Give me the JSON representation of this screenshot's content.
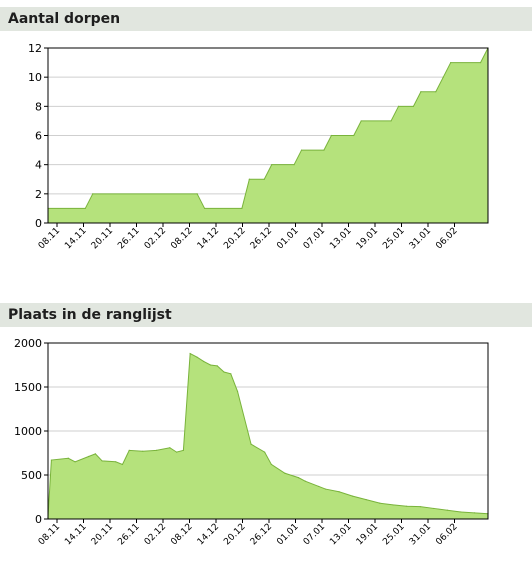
{
  "panels": [
    {
      "title": "Aantal dorpen"
    },
    {
      "title": "Plaats in de ranglijst"
    }
  ],
  "colors": {
    "fill": "#b5e27c",
    "stroke": "#79b33b",
    "grid": "#cfcfcf",
    "header": "#e1e6df"
  },
  "chart_data": [
    {
      "type": "area",
      "title": "Aantal dorpen",
      "x_tick_labels": [
        "08.11",
        "14.11",
        "20.11",
        "26.11",
        "02.12",
        "08.12",
        "14.12",
        "20.12",
        "26.12",
        "01.01",
        "07.01",
        "13.01",
        "19.01",
        "25.01",
        "31.01",
        "06.02"
      ],
      "ylim": [
        0,
        12
      ],
      "y_ticks": [
        0,
        2,
        4,
        6,
        8,
        10,
        12
      ],
      "grid": true,
      "points": [
        [
          0,
          1
        ],
        [
          5,
          1
        ],
        [
          6,
          2
        ],
        [
          20,
          2
        ],
        [
          21,
          1
        ],
        [
          26,
          1
        ],
        [
          27,
          3
        ],
        [
          29,
          3
        ],
        [
          30,
          4
        ],
        [
          33,
          4
        ],
        [
          34,
          5
        ],
        [
          37,
          5
        ],
        [
          38,
          6
        ],
        [
          41,
          6
        ],
        [
          42,
          7
        ],
        [
          46,
          7
        ],
        [
          47,
          8
        ],
        [
          49,
          8
        ],
        [
          50,
          9
        ],
        [
          52,
          9
        ],
        [
          53,
          10
        ],
        [
          54,
          11
        ],
        [
          58,
          11
        ],
        [
          59,
          12
        ]
      ]
    },
    {
      "type": "area",
      "title": "Plaats in de ranglijst",
      "x_tick_labels": [
        "08.11",
        "14.11",
        "20.11",
        "26.11",
        "02.12",
        "08.12",
        "14.12",
        "20.12",
        "26.12",
        "01.01",
        "07.01",
        "13.01",
        "19.01",
        "25.01",
        "31.01",
        "06.02"
      ],
      "ylim": [
        0,
        2000
      ],
      "y_ticks": [
        0,
        500,
        1000,
        1500,
        2000
      ],
      "grid": true,
      "points": [
        [
          0,
          20
        ],
        [
          0.5,
          670
        ],
        [
          3,
          690
        ],
        [
          4,
          650
        ],
        [
          6,
          710
        ],
        [
          7,
          740
        ],
        [
          8,
          660
        ],
        [
          10,
          650
        ],
        [
          11,
          620
        ],
        [
          12,
          780
        ],
        [
          14,
          770
        ],
        [
          16,
          780
        ],
        [
          18,
          810
        ],
        [
          19,
          760
        ],
        [
          20,
          780
        ],
        [
          21,
          1880
        ],
        [
          22,
          1840
        ],
        [
          23,
          1790
        ],
        [
          24,
          1750
        ],
        [
          25,
          1740
        ],
        [
          26,
          1670
        ],
        [
          27,
          1650
        ],
        [
          28,
          1450
        ],
        [
          30,
          850
        ],
        [
          32,
          760
        ],
        [
          33,
          620
        ],
        [
          35,
          520
        ],
        [
          37,
          470
        ],
        [
          38,
          430
        ],
        [
          40,
          370
        ],
        [
          41,
          340
        ],
        [
          43,
          310
        ],
        [
          45,
          260
        ],
        [
          47,
          220
        ],
        [
          49,
          180
        ],
        [
          51,
          160
        ],
        [
          53,
          145
        ],
        [
          55,
          140
        ],
        [
          57,
          120
        ],
        [
          59,
          100
        ],
        [
          61,
          80
        ],
        [
          63,
          70
        ],
        [
          65,
          60
        ]
      ]
    }
  ]
}
